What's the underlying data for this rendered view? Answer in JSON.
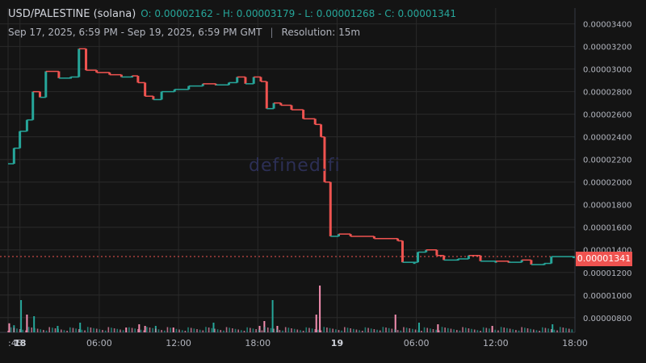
{
  "header": {
    "pair": "USD/PALESTINE (solana)",
    "ohlc": "O: 0.00002162 - H: 0.00003179 - L: 0.00001268 - C: 0.00001341",
    "range": "Sep 17, 2025, 6:59 PM - Sep 19, 2025, 6:59 PM GMT",
    "separator": "|",
    "resolution": "Resolution: 15m"
  },
  "watermark": "defined.fi",
  "last_price_label": "0.00001341",
  "colors": {
    "up": "#26a69a",
    "down": "#ef5350",
    "background": "#141414",
    "grid": "#2a2a2a"
  },
  "chart_data": {
    "type": "candlestick",
    "title": "USD/PALESTINE (solana)",
    "y_ticks": [
      "0.00003400",
      "0.00003200",
      "0.00003000",
      "0.00002800",
      "0.00002600",
      "0.00002400",
      "0.00002200",
      "0.00002000",
      "0.00001800",
      "0.00001600",
      "0.00001400",
      "0.00001200",
      "0.00001000",
      "0.00000800"
    ],
    "x_ticks": [
      ":45",
      "18",
      "06:00",
      "12:00",
      "18:00",
      "19",
      "06:00",
      "12:00",
      "18:00"
    ],
    "ylim": [
      6.7e-06,
      3.54e-05
    ],
    "last_price": 1.341e-05,
    "open": 2.162e-05,
    "high": 3.179e-05,
    "low": 1.268e-05,
    "close": 1.341e-05,
    "price_path": [
      [
        0.0,
        2.162e-05
      ],
      [
        0.5,
        2.3e-05
      ],
      [
        1.0,
        2.45e-05
      ],
      [
        1.6,
        2.55e-05
      ],
      [
        2.1,
        2.8e-05
      ],
      [
        2.7,
        2.75e-05
      ],
      [
        3.2,
        2.98e-05
      ],
      [
        4.3,
        2.92e-05
      ],
      [
        5.3,
        2.93e-05
      ],
      [
        6.0,
        3.18e-05
      ],
      [
        6.6,
        2.99e-05
      ],
      [
        7.5,
        2.97e-05
      ],
      [
        8.6,
        2.95e-05
      ],
      [
        9.6,
        2.93e-05
      ],
      [
        10.5,
        2.94e-05
      ],
      [
        11.0,
        2.88e-05
      ],
      [
        11.6,
        2.76e-05
      ],
      [
        12.3,
        2.73e-05
      ],
      [
        13.0,
        2.8e-05
      ],
      [
        14.1,
        2.82e-05
      ],
      [
        15.3,
        2.85e-05
      ],
      [
        16.5,
        2.87e-05
      ],
      [
        17.6,
        2.86e-05
      ],
      [
        18.7,
        2.88e-05
      ],
      [
        19.4,
        2.93e-05
      ],
      [
        20.1,
        2.87e-05
      ],
      [
        20.8,
        2.93e-05
      ],
      [
        21.4,
        2.89e-05
      ],
      [
        21.9,
        2.65e-05
      ],
      [
        22.5,
        2.7e-05
      ],
      [
        23.1,
        2.68e-05
      ],
      [
        24.0,
        2.64e-05
      ],
      [
        25.0,
        2.56e-05
      ],
      [
        26.0,
        2.51e-05
      ],
      [
        26.5,
        2.4e-05
      ],
      [
        26.8,
        2e-05
      ],
      [
        27.3,
        1.52e-05
      ],
      [
        28.0,
        1.54e-05
      ],
      [
        29.0,
        1.52e-05
      ],
      [
        31.0,
        1.5e-05
      ],
      [
        33.0,
        1.48e-05
      ],
      [
        33.4,
        1.29e-05
      ],
      [
        34.4,
        1.29e-05
      ],
      [
        34.7,
        1.38e-05
      ],
      [
        35.4,
        1.4e-05
      ],
      [
        36.3,
        1.35e-05
      ],
      [
        36.9,
        1.31e-05
      ],
      [
        38.1,
        1.32e-05
      ],
      [
        39.0,
        1.35e-05
      ],
      [
        40.0,
        1.3e-05
      ],
      [
        41.3,
        1.3e-05
      ],
      [
        42.4,
        1.29e-05
      ],
      [
        43.5,
        1.31e-05
      ],
      [
        44.3,
        1.27e-05
      ],
      [
        45.4,
        1.28e-05
      ],
      [
        46.0,
        1.34e-05
      ],
      [
        47.9,
        1.341e-05
      ]
    ],
    "volume_profile": [
      [
        0.1,
        0.28,
        "down"
      ],
      [
        0.5,
        0.22,
        "up"
      ],
      [
        1.1,
        1.0,
        "up"
      ],
      [
        1.6,
        0.55,
        "down"
      ],
      [
        2.2,
        0.5,
        "up"
      ],
      [
        4.2,
        0.2,
        "up"
      ],
      [
        6.1,
        0.3,
        "up"
      ],
      [
        10.0,
        0.15,
        "down"
      ],
      [
        11.1,
        0.25,
        "down"
      ],
      [
        11.6,
        0.2,
        "down"
      ],
      [
        12.5,
        0.2,
        "up"
      ],
      [
        14.0,
        0.15,
        "down"
      ],
      [
        17.4,
        0.3,
        "up"
      ],
      [
        21.3,
        0.2,
        "down"
      ],
      [
        21.7,
        0.35,
        "down"
      ],
      [
        22.4,
        1.0,
        "up"
      ],
      [
        22.8,
        0.2,
        "down"
      ],
      [
        26.1,
        0.55,
        "down"
      ],
      [
        26.4,
        1.45,
        "down"
      ],
      [
        32.8,
        0.55,
        "down"
      ],
      [
        34.8,
        0.3,
        "up"
      ],
      [
        36.4,
        0.25,
        "down"
      ],
      [
        41.0,
        0.2,
        "down"
      ],
      [
        46.1,
        0.25,
        "up"
      ]
    ],
    "volume_max": 1.5,
    "x_hours": [
      0,
      48
    ]
  }
}
